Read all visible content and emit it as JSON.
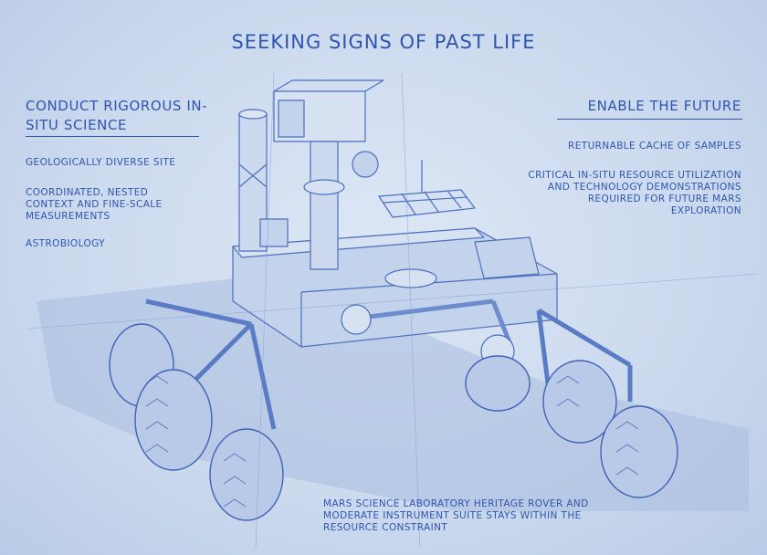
{
  "title": "SEEKING SIGNS OF PAST LIFE",
  "left": {
    "heading": "CONDUCT RIGOROUS IN-SITU SCIENCE",
    "items": [
      "GEOLOGICALLY DIVERSE SITE",
      "COORDINATED, NESTED CONTEXT AND FINE-SCALE MEASUREMENTS",
      "ASTROBIOLOGY"
    ]
  },
  "right": {
    "heading": "ENABLE THE FUTURE",
    "items": [
      "RETURNABLE CACHE OF SAMPLES",
      "CRITICAL IN-SITU RESOURCE UTILIZATION AND TECHNOLOGY DEMONSTRATIONS REQUIRED FOR FUTURE MARS EXPLORATION"
    ]
  },
  "bottom_note": "MARS SCIENCE LABORATORY HERITAGE ROVER AND MODERATE INSTRUMENT SUITE STAYS WITHIN THE RESOURCE CONSTRAINT",
  "colors": {
    "ink": "#2f56ad",
    "paper": "#cfdcef"
  }
}
